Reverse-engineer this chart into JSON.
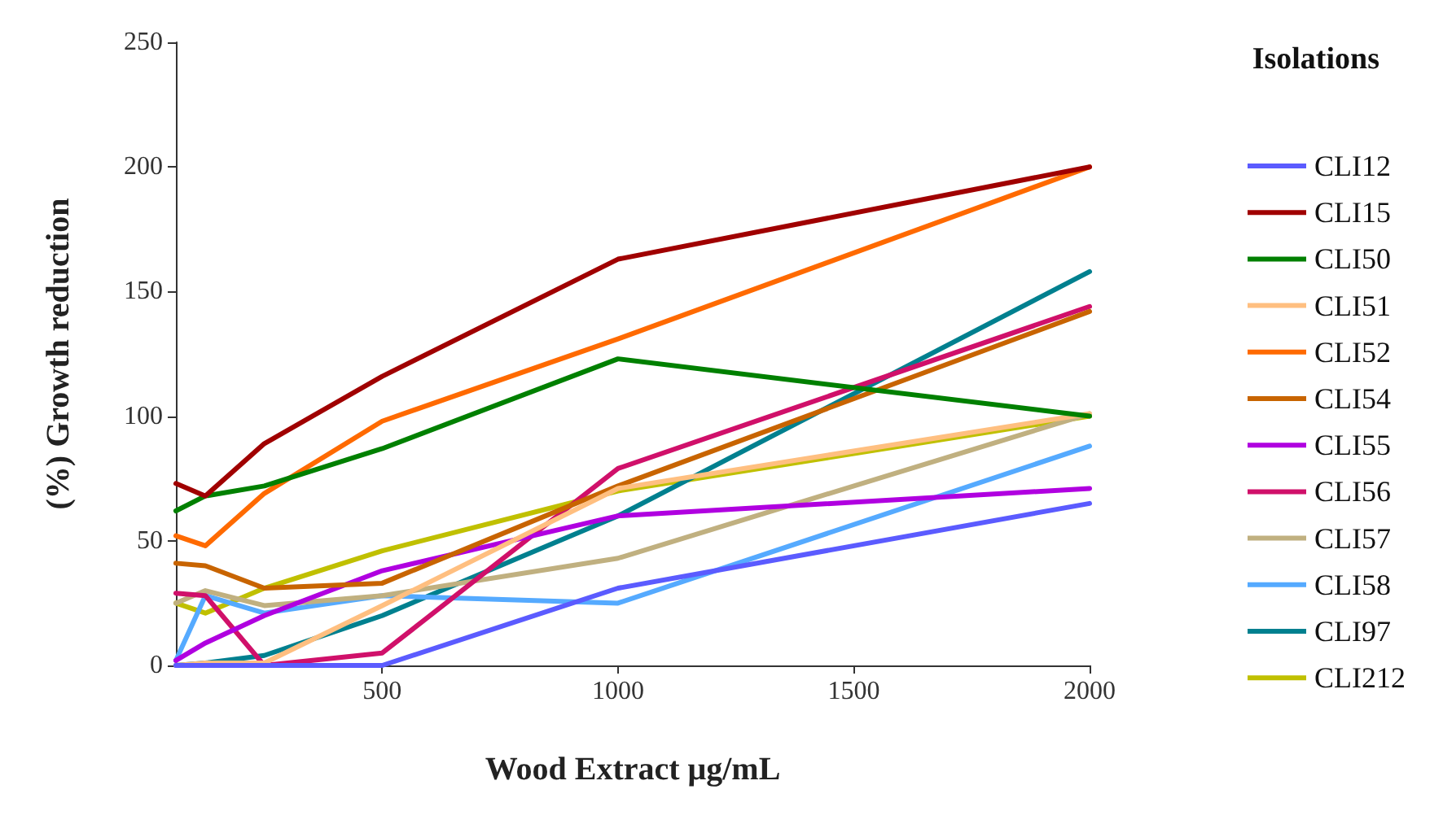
{
  "chart_data": {
    "type": "line",
    "xlabel": "Wood Extract μg/mL",
    "ylabel": "(%) Growth reduction",
    "legend_title": "Isolations",
    "legend": "right",
    "grid": false,
    "marker": "none",
    "line_style": "solid",
    "x": [
      62.5,
      125,
      250,
      500,
      1000,
      2000
    ],
    "xlim": [
      62.5,
      2000
    ],
    "xticks": [
      500,
      1000,
      1500,
      2000
    ],
    "ylim": [
      0,
      250
    ],
    "yticks": [
      0,
      50,
      100,
      150,
      200,
      250
    ],
    "series": [
      {
        "name": "CLI12",
        "color": "#5b5bff",
        "values": [
          0,
          0,
          0,
          0,
          31,
          65
        ]
      },
      {
        "name": "CLI15",
        "color": "#a00000",
        "values": [
          73,
          68,
          89,
          116,
          163,
          200
        ]
      },
      {
        "name": "CLI50",
        "color": "#008000",
        "values": [
          62,
          68,
          72,
          87,
          123,
          100
        ]
      },
      {
        "name": "CLI51",
        "color": "#ffbf80",
        "values": [
          0,
          1,
          1,
          24,
          71,
          101
        ]
      },
      {
        "name": "CLI52",
        "color": "#ff6a00",
        "values": [
          52,
          48,
          69,
          98,
          131,
          200
        ]
      },
      {
        "name": "CLI54",
        "color": "#c86400",
        "values": [
          41,
          40,
          31,
          33,
          72,
          142
        ]
      },
      {
        "name": "CLI55",
        "color": "#b000e0",
        "values": [
          2,
          9,
          20,
          38,
          60,
          71
        ]
      },
      {
        "name": "CLI56",
        "color": "#d0106a",
        "values": [
          29,
          28,
          0,
          5,
          79,
          144
        ]
      },
      {
        "name": "CLI57",
        "color": "#c0b080",
        "values": [
          25,
          30,
          24,
          28,
          43,
          101
        ]
      },
      {
        "name": "CLI58",
        "color": "#55aaff",
        "values": [
          2,
          28,
          21,
          28,
          25,
          88
        ]
      },
      {
        "name": "CLI97",
        "color": "#00808f",
        "values": [
          0,
          1,
          4,
          20,
          60,
          158
        ]
      },
      {
        "name": "CLI212",
        "color": "#c0c000",
        "values": [
          25,
          21,
          31,
          46,
          70,
          100
        ]
      }
    ]
  }
}
